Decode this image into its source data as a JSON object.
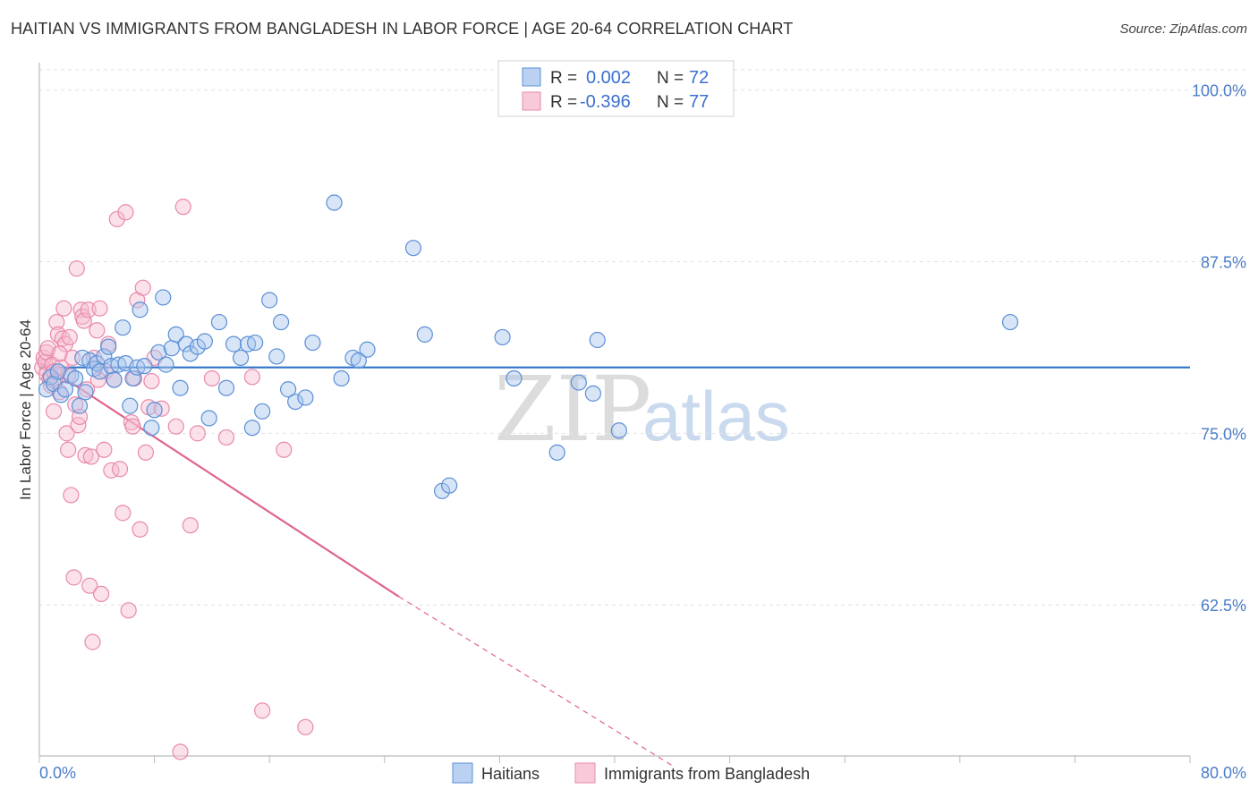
{
  "header": {
    "title": "HAITIAN VS IMMIGRANTS FROM BANGLADESH IN LABOR FORCE | AGE 20-64 CORRELATION CHART",
    "source": "Source: ZipAtlas.com"
  },
  "watermark": {
    "zip": "ZIP",
    "atlas": "atlas"
  },
  "colors": {
    "blue_fill": "#a9c6ee",
    "blue_stroke": "#5b8fd6",
    "blue_line": "#2f72c9",
    "pink_fill": "#f6bdd0",
    "pink_stroke": "#e88aab",
    "pink_line": "#e0648f",
    "grid": "#e2e2e2",
    "tick_text": "#4a7cc9"
  },
  "legend": {
    "rows": [
      {
        "r_label": "R =",
        "r_value": "0.002",
        "n_label": "N =",
        "n_value": "72"
      },
      {
        "r_label": "R =",
        "r_value": "-0.396",
        "n_label": "N =",
        "n_value": "77"
      }
    ]
  },
  "chart_data": {
    "type": "scatter",
    "title": "HAITIAN VS IMMIGRANTS FROM BANGLADESH IN LABOR FORCE | AGE 20-64 CORRELATION CHART",
    "xlabel": "",
    "ylabel": "In Labor Force | Age 20-64",
    "xlim": [
      0,
      80
    ],
    "ylim": [
      51.5,
      102
    ],
    "x_tick_labels": [
      "0.0%",
      "80.0%"
    ],
    "y_ticks": [
      62.5,
      75.0,
      87.5,
      100.0
    ],
    "y_tick_labels": [
      "62.5%",
      "75.0%",
      "87.5%",
      "100.0%"
    ],
    "legend_position": "top-center",
    "series": [
      {
        "name": "Haitians",
        "color": "blue",
        "R": 0.002,
        "N": 72,
        "trend": {
          "x0": 0,
          "y0": 79.8,
          "x1": 80,
          "y1": 79.8
        },
        "points": [
          [
            0.5,
            78.2
          ],
          [
            0.8,
            79.1
          ],
          [
            1.0,
            78.6
          ],
          [
            1.3,
            79.5
          ],
          [
            1.5,
            77.8
          ],
          [
            1.8,
            78.2
          ],
          [
            2.2,
            79.2
          ],
          [
            2.5,
            79.0
          ],
          [
            2.8,
            77.0
          ],
          [
            3.0,
            80.5
          ],
          [
            3.2,
            78.0
          ],
          [
            3.5,
            80.3
          ],
          [
            3.8,
            79.7
          ],
          [
            4.0,
            80.1
          ],
          [
            4.2,
            79.5
          ],
          [
            4.5,
            80.6
          ],
          [
            4.8,
            81.3
          ],
          [
            5.0,
            79.9
          ],
          [
            5.2,
            78.9
          ],
          [
            5.5,
            80.0
          ],
          [
            5.8,
            82.7
          ],
          [
            6.0,
            80.1
          ],
          [
            6.3,
            77.0
          ],
          [
            6.5,
            79.0
          ],
          [
            6.8,
            79.8
          ],
          [
            7.0,
            84.0
          ],
          [
            7.3,
            79.9
          ],
          [
            7.8,
            75.4
          ],
          [
            8.0,
            76.7
          ],
          [
            8.3,
            80.9
          ],
          [
            8.6,
            84.9
          ],
          [
            8.8,
            80.0
          ],
          [
            9.2,
            81.2
          ],
          [
            9.5,
            82.2
          ],
          [
            9.8,
            78.3
          ],
          [
            10.2,
            81.5
          ],
          [
            10.5,
            80.8
          ],
          [
            11.0,
            81.3
          ],
          [
            11.5,
            81.7
          ],
          [
            11.8,
            76.1
          ],
          [
            12.5,
            83.1
          ],
          [
            13.0,
            78.3
          ],
          [
            13.5,
            81.5
          ],
          [
            14.0,
            80.5
          ],
          [
            14.5,
            81.5
          ],
          [
            14.8,
            75.4
          ],
          [
            15.0,
            81.6
          ],
          [
            15.5,
            76.6
          ],
          [
            16.0,
            84.7
          ],
          [
            16.5,
            80.6
          ],
          [
            16.8,
            83.1
          ],
          [
            17.3,
            78.2
          ],
          [
            17.8,
            77.3
          ],
          [
            18.5,
            77.6
          ],
          [
            19.0,
            81.6
          ],
          [
            20.5,
            91.8
          ],
          [
            21.0,
            79.0
          ],
          [
            21.8,
            80.5
          ],
          [
            22.2,
            80.3
          ],
          [
            22.8,
            81.1
          ],
          [
            26.0,
            88.5
          ],
          [
            26.8,
            82.2
          ],
          [
            28.0,
            70.8
          ],
          [
            28.5,
            71.2
          ],
          [
            32.2,
            82.0
          ],
          [
            33.0,
            79.0
          ],
          [
            36.0,
            73.6
          ],
          [
            37.5,
            78.7
          ],
          [
            38.5,
            77.9
          ],
          [
            38.8,
            81.8
          ],
          [
            40.3,
            75.2
          ],
          [
            67.5,
            83.1
          ]
        ]
      },
      {
        "name": "Immigrants from Bangladesh",
        "color": "pink",
        "R": -0.396,
        "N": 77,
        "trend": {
          "x0": 0,
          "y0": 80.2,
          "x1": 25,
          "y1": 63.1,
          "dash_x1": 44,
          "dash_y1": 50.8
        },
        "points": [
          [
            0.2,
            79.8
          ],
          [
            0.3,
            80.5
          ],
          [
            0.4,
            80.2
          ],
          [
            0.5,
            79.3
          ],
          [
            0.5,
            80.9
          ],
          [
            0.6,
            81.2
          ],
          [
            0.7,
            79.0
          ],
          [
            0.8,
            78.5
          ],
          [
            0.9,
            80.0
          ],
          [
            1.0,
            79.5
          ],
          [
            1.0,
            76.6
          ],
          [
            1.1,
            78.8
          ],
          [
            1.2,
            83.1
          ],
          [
            1.3,
            82.2
          ],
          [
            1.4,
            78.0
          ],
          [
            1.5,
            79.8
          ],
          [
            1.6,
            81.9
          ],
          [
            1.7,
            84.1
          ],
          [
            1.8,
            81.5
          ],
          [
            1.9,
            75.0
          ],
          [
            2.0,
            73.8
          ],
          [
            2.1,
            82.0
          ],
          [
            2.2,
            70.5
          ],
          [
            2.3,
            80.5
          ],
          [
            2.4,
            64.5
          ],
          [
            2.5,
            77.1
          ],
          [
            2.6,
            87.0
          ],
          [
            2.7,
            75.6
          ],
          [
            2.8,
            76.2
          ],
          [
            2.9,
            84.0
          ],
          [
            3.0,
            83.5
          ],
          [
            3.1,
            83.2
          ],
          [
            3.2,
            73.4
          ],
          [
            3.3,
            78.2
          ],
          [
            3.4,
            84.0
          ],
          [
            3.5,
            63.9
          ],
          [
            3.6,
            73.3
          ],
          [
            3.7,
            59.8
          ],
          [
            3.8,
            80.5
          ],
          [
            4.0,
            82.5
          ],
          [
            4.2,
            84.1
          ],
          [
            4.3,
            63.3
          ],
          [
            4.5,
            73.8
          ],
          [
            4.6,
            79.5
          ],
          [
            4.8,
            81.5
          ],
          [
            5.0,
            72.3
          ],
          [
            5.2,
            78.9
          ],
          [
            5.4,
            90.6
          ],
          [
            5.6,
            72.4
          ],
          [
            5.8,
            69.2
          ],
          [
            6.0,
            91.1
          ],
          [
            6.2,
            62.1
          ],
          [
            6.4,
            75.8
          ],
          [
            6.6,
            79.0
          ],
          [
            6.8,
            84.7
          ],
          [
            7.0,
            68.0
          ],
          [
            7.2,
            85.6
          ],
          [
            7.4,
            73.6
          ],
          [
            7.6,
            76.9
          ],
          [
            7.8,
            78.8
          ],
          [
            8.0,
            80.5
          ],
          [
            9.5,
            75.5
          ],
          [
            10.0,
            91.5
          ],
          [
            10.5,
            68.3
          ],
          [
            11.0,
            75.0
          ],
          [
            12.0,
            79.0
          ],
          [
            13.0,
            74.7
          ],
          [
            14.8,
            79.1
          ],
          [
            15.5,
            54.8
          ],
          [
            17.0,
            73.8
          ],
          [
            18.5,
            53.6
          ],
          [
            9.8,
            51.8
          ],
          [
            6.5,
            75.5
          ],
          [
            4.1,
            78.9
          ],
          [
            2.0,
            79.2
          ],
          [
            1.4,
            80.8
          ],
          [
            8.5,
            76.8
          ]
        ]
      }
    ]
  },
  "bottom_legend": {
    "items": [
      "Haitians",
      "Immigrants from Bangladesh"
    ]
  }
}
